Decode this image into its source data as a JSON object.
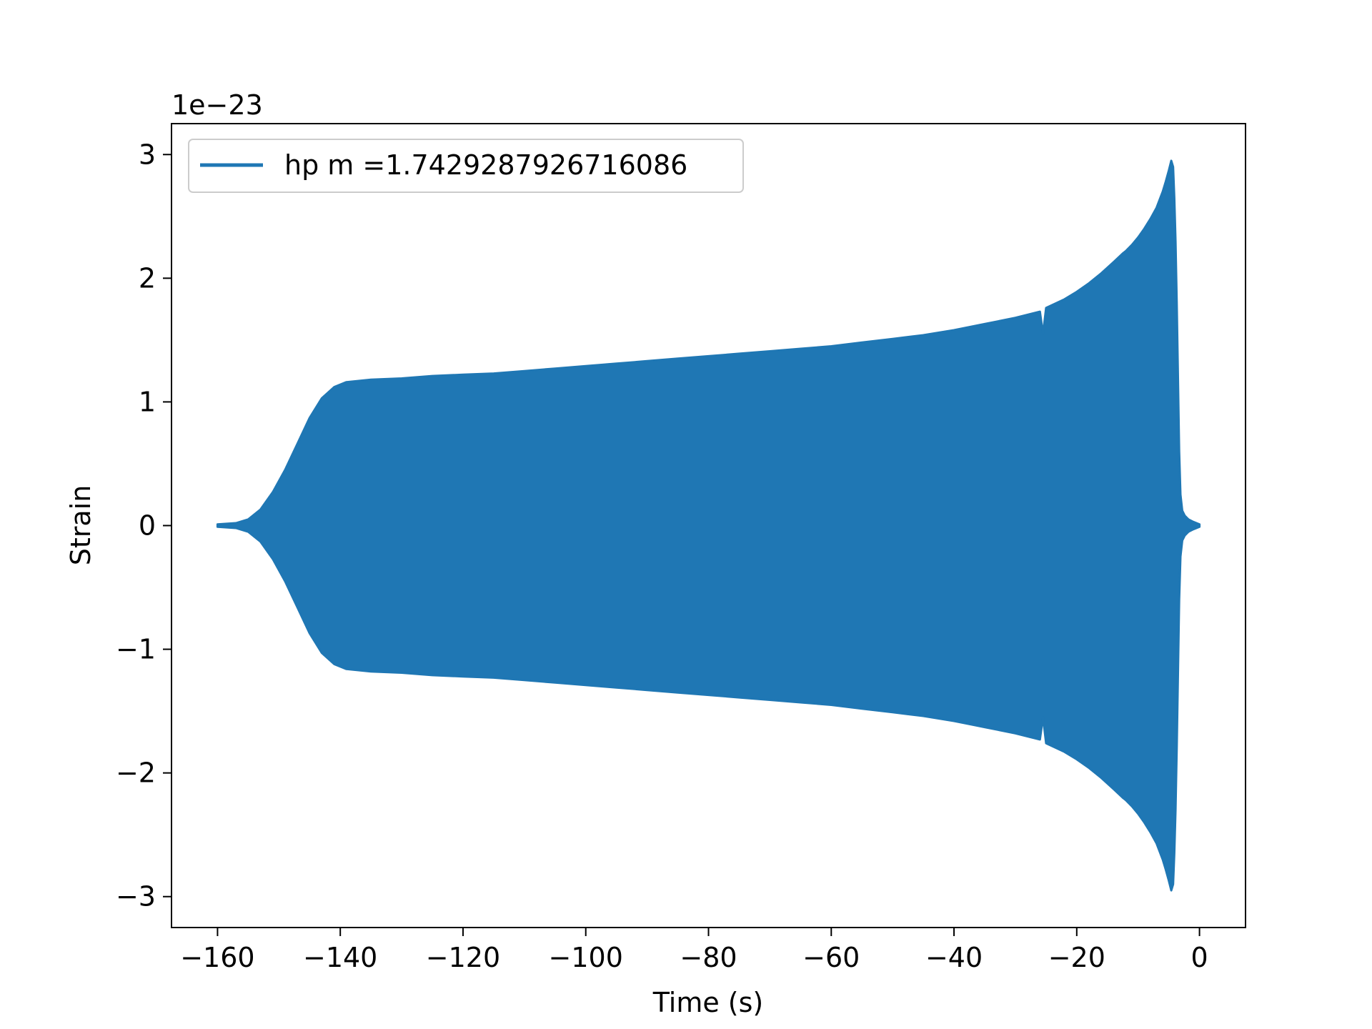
{
  "chart_data": {
    "type": "area",
    "title": "",
    "xlabel": "Time (s)",
    "ylabel": "Strain",
    "scale_label": "1e−23",
    "xlim": [
      -167.5,
      7.5
    ],
    "ylim": [
      -3.25,
      3.25
    ],
    "x_ticks": [
      -160,
      -140,
      -120,
      -100,
      -80,
      -60,
      -40,
      -20,
      0
    ],
    "x_tick_labels": [
      "−160",
      "−140",
      "−120",
      "−100",
      "−80",
      "−60",
      "−40",
      "−20",
      "0"
    ],
    "y_ticks": [
      -3,
      -2,
      -1,
      0,
      1,
      2,
      3
    ],
    "y_tick_labels": [
      "−3",
      "−2",
      "−1",
      "0",
      "1",
      "2",
      "3"
    ],
    "grid": false,
    "legend": "upper-left",
    "series": [
      {
        "name": "hp m =1.7429287926716086",
        "color": "#1f77b4",
        "envelope": {
          "x": [
            -160,
            -157,
            -155,
            -153,
            -151,
            -149,
            -147,
            -145,
            -143,
            -141,
            -139,
            -137,
            -135,
            -130,
            -125,
            -120,
            -115,
            -110,
            -105,
            -100,
            -95,
            -90,
            -85,
            -80,
            -75,
            -70,
            -65,
            -60,
            -55,
            -50,
            -45,
            -40,
            -35,
            -30,
            -26,
            -25.5,
            -25,
            -22,
            -20,
            -18,
            -16,
            -14,
            -12.5,
            -12,
            -11,
            -10,
            -9,
            -8,
            -7,
            -6,
            -5.5,
            -5,
            -4.6,
            -4.3,
            -4.1,
            -3.9,
            -3.7,
            -3.5,
            -3.3,
            -3.1,
            -2.8,
            -2.4,
            -1.8,
            -1,
            0
          ],
          "upper": [
            0.01,
            0.02,
            0.05,
            0.13,
            0.27,
            0.45,
            0.66,
            0.87,
            1.03,
            1.12,
            1.16,
            1.17,
            1.18,
            1.19,
            1.21,
            1.22,
            1.23,
            1.25,
            1.27,
            1.29,
            1.31,
            1.33,
            1.35,
            1.37,
            1.39,
            1.41,
            1.43,
            1.45,
            1.48,
            1.51,
            1.54,
            1.58,
            1.63,
            1.68,
            1.73,
            1.55,
            1.76,
            1.83,
            1.89,
            1.96,
            2.04,
            2.13,
            2.2,
            2.22,
            2.27,
            2.33,
            2.4,
            2.48,
            2.57,
            2.7,
            2.78,
            2.87,
            2.95,
            2.9,
            2.65,
            2.3,
            1.8,
            1.2,
            0.6,
            0.25,
            0.12,
            0.08,
            0.05,
            0.03,
            0.01
          ]
        }
      }
    ]
  }
}
